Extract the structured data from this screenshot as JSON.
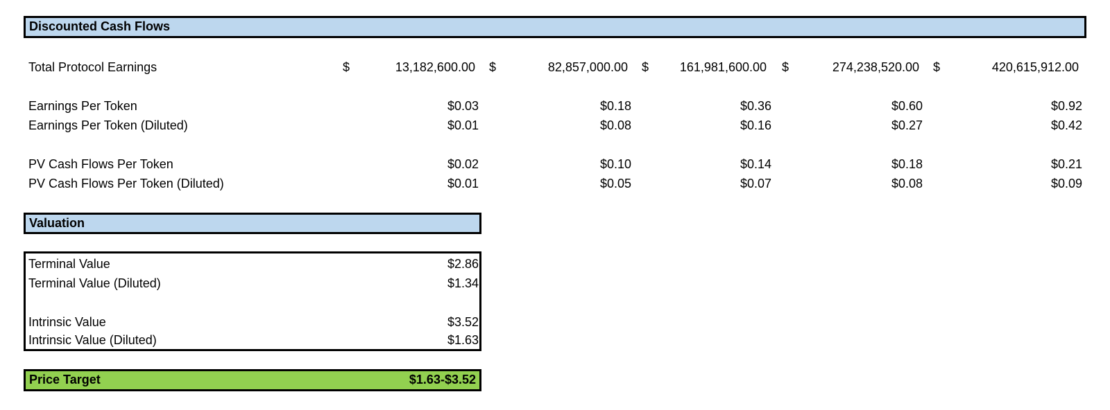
{
  "dcf": {
    "header": "Discounted Cash Flows",
    "earnings_label": "Total Protocol Earnings",
    "currency_symbol": "$",
    "earnings": [
      "13,182,600.00",
      "82,857,000.00",
      "161,981,600.00",
      "274,238,520.00",
      "420,615,912.00"
    ],
    "eps_label": "Earnings Per Token",
    "eps": [
      "$0.03",
      "$0.18",
      "$0.36",
      "$0.60",
      "$0.92"
    ],
    "eps_diluted_label": "Earnings Per Token (Diluted)",
    "eps_diluted": [
      "$0.01",
      "$0.08",
      "$0.16",
      "$0.27",
      "$0.42"
    ],
    "pv_label": "PV Cash Flows Per Token",
    "pv": [
      "$0.02",
      "$0.10",
      "$0.14",
      "$0.18",
      "$0.21"
    ],
    "pv_diluted_label": "PV Cash Flows Per Token (Diluted)",
    "pv_diluted": [
      "$0.01",
      "$0.05",
      "$0.07",
      "$0.08",
      "$0.09"
    ]
  },
  "valuation": {
    "header": "Valuation",
    "terminal_label": "Terminal Value",
    "terminal_value": "$2.86",
    "terminal_diluted_label": "Terminal Value (Diluted)",
    "terminal_diluted_value": "$1.34",
    "intrinsic_label": "Intrinsic Value",
    "intrinsic_value": "$3.52",
    "intrinsic_diluted_label": "Intrinsic Value (Diluted)",
    "intrinsic_diluted_value": "$1.63"
  },
  "price_target": {
    "label": "Price Target",
    "value": "$1.63-$3.52"
  }
}
